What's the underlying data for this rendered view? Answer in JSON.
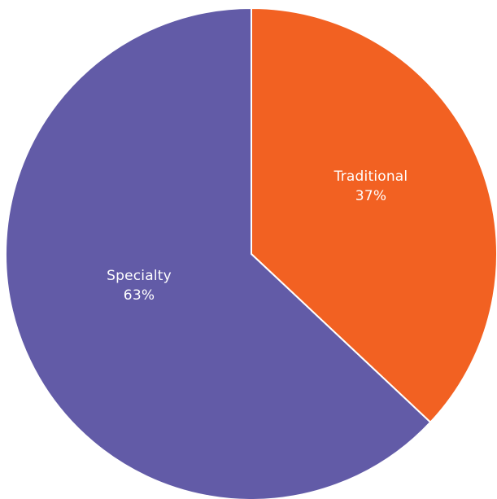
{
  "chart_data": {
    "type": "pie",
    "title": "",
    "slices": [
      {
        "label": "Traditional",
        "value": 37,
        "value_label": "37%",
        "color": "#F26122"
      },
      {
        "label": "Specialty",
        "value": 63,
        "value_label": "63%",
        "color": "#625BA7"
      }
    ],
    "start": "12 o'clock",
    "direction": "clockwise",
    "slice_border_color": "#ffffff",
    "legend": "none",
    "labels_inside_slices": true
  }
}
